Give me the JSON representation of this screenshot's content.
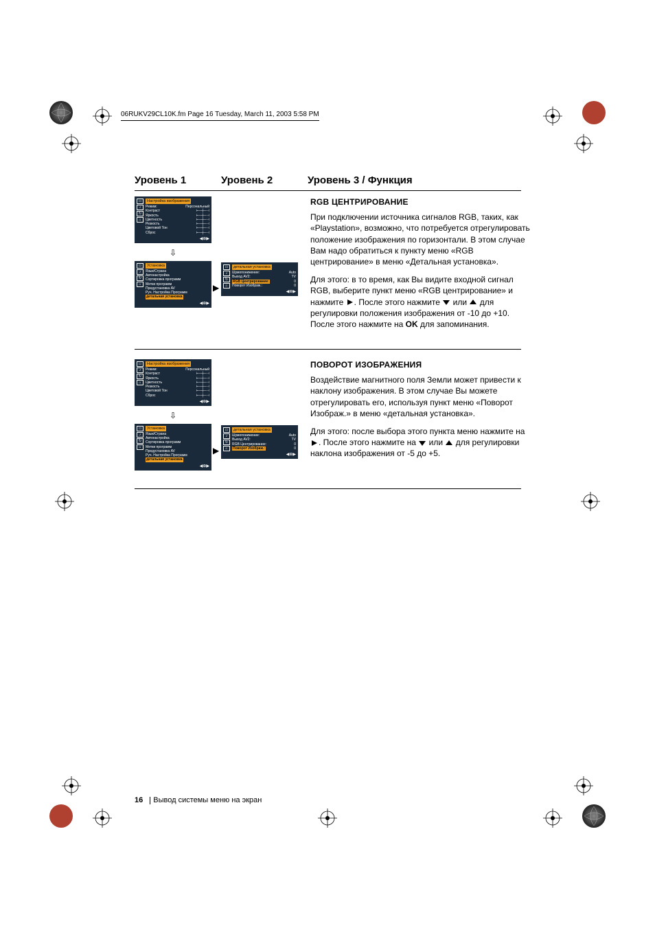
{
  "frameHeader": "06RUKV29CL10K.fm  Page 16  Tuesday, March 11, 2003  5:58 PM",
  "headings": {
    "l1": "Уровень  1",
    "l2": "Уровень  2",
    "l3": "Уровень 3 / Функция"
  },
  "section1": {
    "title": "RGB  ЦЕНТРИРОВАНИЕ",
    "p1": "При подключении источника сигналов RGB, таких, как «Playstation», возможно, что потребуется отрегулировать положение изображения по горизонтали. В этом случае Вам надо обратиться к пункту меню «RGB центрирование» в меню «Детальная установка».",
    "p2a": "Для этого: в то время, как Вы видите входной сигнал RGB, выберите пункт меню «RGB центрирование» и нажмите ",
    "p2b": ". После этого нажмите ",
    "p2c": " или ",
    "p2d": " для регулировки положения изображения от -10 до +10. После этого нажмите на ",
    "p2ok": "OK",
    "p2e": " для запоминания."
  },
  "section2": {
    "title": "ПОВОРОТ ИЗОБРАЖЕНИЯ",
    "p1": "Воздействие магнитного поля Земли может привести к наклону изображения. В этом случае Вы можете отрегулировать его, используя пункт меню «Поворот Изображ.» в меню «детальная установка».",
    "p2a": "Для этого: после выбора этого пункта меню нажмите на ",
    "p2b": ". После этого нажмите на ",
    "p2c": " или ",
    "p2d": " для регулировки наклона изображения от -5 до +5."
  },
  "menus": {
    "picture": {
      "title": "Настройка изображения",
      "rows": [
        [
          "Режим:",
          "Персональный"
        ],
        [
          "Контраст",
          ""
        ],
        [
          "Яркость",
          ""
        ],
        [
          "Цветность",
          ""
        ],
        [
          "Резкость",
          ""
        ],
        [
          "Цветовой Тон",
          ""
        ],
        [
          "Сброс",
          ""
        ]
      ]
    },
    "setup": {
      "title": "Установка",
      "rows": [
        "Язык/Страна",
        "Автонастройка",
        "Сортировка программ",
        "Метки программ",
        "Предустановка AV",
        "Руч. Настройка Программ",
        "детальная установка"
      ]
    },
    "detail1": {
      "title": "детальная установка",
      "rows": [
        [
          "Шумопонижение:",
          "Auto"
        ],
        [
          "Выход  AV2:",
          "TV"
        ],
        [
          "RGB Центрирование:",
          "0"
        ],
        [
          "Поворот Изображ.:",
          "0"
        ]
      ],
      "hl": 2
    },
    "detail2": {
      "title": "детальная установка",
      "rows": [
        [
          "Шумопонижение:",
          "Auto"
        ],
        [
          "Выход  AV2:",
          "TV"
        ],
        [
          "RGB Центрирование:",
          "0"
        ],
        [
          "Поворот Изображ.:",
          "0"
        ]
      ],
      "hl": 3
    }
  },
  "footer": {
    "page": "16",
    "text": "Вывод системы меню на экран"
  }
}
